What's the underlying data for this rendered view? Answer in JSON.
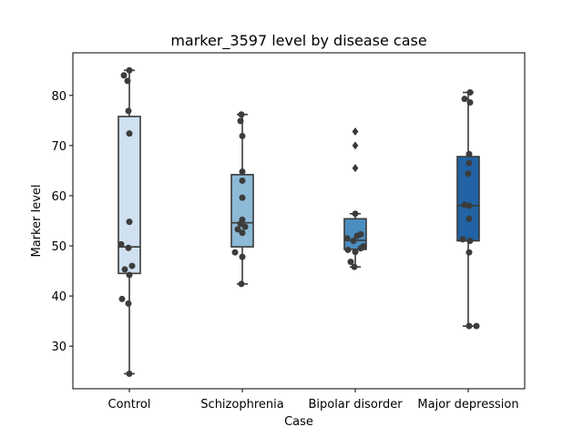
{
  "chart_data": {
    "type": "box",
    "title": "marker_3597 level by disease case",
    "xlabel": "Case",
    "ylabel": "Marker level",
    "ylim": [
      21.5,
      88.5
    ],
    "yticks": [
      30,
      40,
      50,
      60,
      70,
      80
    ],
    "categories": [
      "Control",
      "Schizophrenia",
      "Bipolar disorder",
      "Major depression"
    ],
    "colors": [
      "#cfe0f0",
      "#8dbad6",
      "#4a8dc0",
      "#2163a4"
    ],
    "boxes": [
      {
        "q1": 44.5,
        "median": 49.8,
        "q3": 75.8,
        "whisker_low": 24.5,
        "whisker_high": 85.0,
        "outliers": []
      },
      {
        "q1": 49.8,
        "median": 54.6,
        "q3": 64.2,
        "whisker_low": 42.4,
        "whisker_high": 76.2,
        "outliers": []
      },
      {
        "q1": 49.3,
        "median": 51.1,
        "q3": 55.4,
        "whisker_low": 45.8,
        "whisker_high": 56.4,
        "outliers": [
          65.5,
          70.0,
          72.8
        ]
      },
      {
        "q1": 51.0,
        "median": 58.0,
        "q3": 67.8,
        "whisker_low": 34.0,
        "whisker_high": 80.6,
        "outliers": []
      }
    ],
    "points": [
      [
        {
          "dx": 0,
          "y": 85.0
        },
        {
          "dx": -0.3,
          "y": 84.0
        },
        {
          "dx": -0.1,
          "y": 82.9
        },
        {
          "dx": -0.05,
          "y": 76.9
        },
        {
          "dx": 0,
          "y": 72.4
        },
        {
          "dx": 0,
          "y": 54.8
        },
        {
          "dx": -0.45,
          "y": 50.3
        },
        {
          "dx": -0.05,
          "y": 49.6
        },
        {
          "dx": 0.15,
          "y": 46.0
        },
        {
          "dx": -0.25,
          "y": 45.3
        },
        {
          "dx": 0,
          "y": 44.2
        },
        {
          "dx": -0.4,
          "y": 39.4
        },
        {
          "dx": -0.05,
          "y": 38.5
        },
        {
          "dx": 0,
          "y": 24.5
        }
      ],
      [
        {
          "dx": -0.05,
          "y": 76.2
        },
        {
          "dx": -0.1,
          "y": 74.9
        },
        {
          "dx": 0,
          "y": 71.9
        },
        {
          "dx": 0,
          "y": 64.8
        },
        {
          "dx": 0,
          "y": 63.0
        },
        {
          "dx": 0,
          "y": 59.6
        },
        {
          "dx": 0,
          "y": 55.2
        },
        {
          "dx": -0.1,
          "y": 54.4
        },
        {
          "dx": 0.15,
          "y": 53.8
        },
        {
          "dx": -0.25,
          "y": 53.3
        },
        {
          "dx": 0,
          "y": 52.6
        },
        {
          "dx": -0.4,
          "y": 48.7
        },
        {
          "dx": 0,
          "y": 47.8
        },
        {
          "dx": -0.05,
          "y": 42.4
        }
      ],
      [
        {
          "dx": 0,
          "y": 56.4
        },
        {
          "dx": 0.3,
          "y": 52.3
        },
        {
          "dx": 0.1,
          "y": 52.0
        },
        {
          "dx": -0.45,
          "y": 51.5
        },
        {
          "dx": -0.1,
          "y": 51.0
        },
        {
          "dx": 0.45,
          "y": 49.9
        },
        {
          "dx": 0.3,
          "y": 49.5
        },
        {
          "dx": -0.4,
          "y": 49.2
        },
        {
          "dx": 0,
          "y": 48.8
        },
        {
          "dx": -0.25,
          "y": 46.8
        },
        {
          "dx": -0.05,
          "y": 45.8
        }
      ],
      [
        {
          "dx": 0.1,
          "y": 80.6
        },
        {
          "dx": -0.2,
          "y": 79.3
        },
        {
          "dx": 0.1,
          "y": 78.6
        },
        {
          "dx": 0.05,
          "y": 68.3
        },
        {
          "dx": 0.05,
          "y": 66.5
        },
        {
          "dx": 0,
          "y": 64.4
        },
        {
          "dx": -0.2,
          "y": 58.2
        },
        {
          "dx": 0.05,
          "y": 58.0
        },
        {
          "dx": 0.05,
          "y": 55.4
        },
        {
          "dx": -0.3,
          "y": 51.3
        },
        {
          "dx": 0.1,
          "y": 51.0
        },
        {
          "dx": 0.05,
          "y": 48.7
        },
        {
          "dx": 0.05,
          "y": 34.0
        },
        {
          "dx": 0.45,
          "y": 34.0
        }
      ]
    ]
  }
}
